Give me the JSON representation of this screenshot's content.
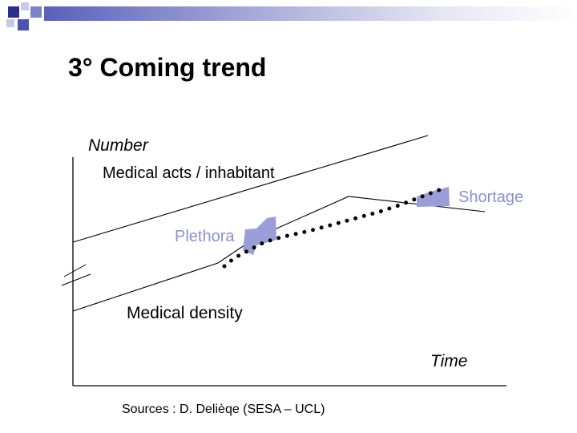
{
  "title": "3° Coming trend",
  "labels": {
    "y_axis": "Number",
    "medical_acts": "Medical acts / inhabitant",
    "medical_density": "Medical density",
    "x_axis": "Time",
    "shortage": "Shortage",
    "plethora": "Plethora",
    "source": "Sources : D. Delièqe (SESA – UCL)"
  },
  "colors": {
    "accent": "#5a61b8",
    "region_fill": "#9a9dd8",
    "region_label": "#8c8fcf",
    "line": "#000000"
  }
}
